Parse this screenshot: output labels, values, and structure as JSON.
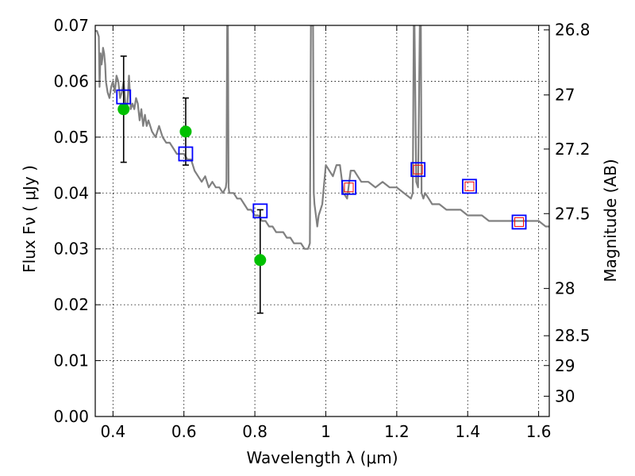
{
  "chart_data": {
    "type": "scatter",
    "xlabel": "Wavelength  λ (μm)",
    "ylabel": "Flux  Fν  ( μJy )",
    "y2label": "Magnitude (AB)",
    "xlim": [
      0.35,
      1.63
    ],
    "ylim": [
      0.0,
      0.07
    ],
    "grid": true,
    "x_ticks": [
      0.4,
      0.6,
      0.8,
      1.0,
      1.2,
      1.4,
      1.6
    ],
    "x_tick_labels": [
      "0.4",
      "0.6",
      "0.8",
      "1",
      "1.2",
      "1.4",
      "1.6"
    ],
    "y_ticks": [
      0.0,
      0.01,
      0.02,
      0.03,
      0.04,
      0.05,
      0.06,
      0.07
    ],
    "y_tick_labels": [
      "0.00",
      "0.01",
      "0.02",
      "0.03",
      "0.04",
      "0.05",
      "0.06",
      "0.07"
    ],
    "y2_ticks": [
      26.8,
      27.0,
      27.2,
      27.5,
      28.0,
      28.5,
      29.0,
      30.0
    ],
    "y2_tick_labels": [
      "26.8",
      "27",
      "27.2",
      "27.5",
      "28",
      "28.5",
      "29",
      "30"
    ],
    "series": [
      {
        "kind": "model-spectrum",
        "color": "#808080",
        "x": [
          0.35,
          0.355,
          0.36,
          0.362,
          0.365,
          0.368,
          0.37,
          0.372,
          0.375,
          0.378,
          0.38,
          0.385,
          0.39,
          0.395,
          0.4,
          0.405,
          0.41,
          0.415,
          0.42,
          0.425,
          0.43,
          0.435,
          0.44,
          0.445,
          0.45,
          0.455,
          0.46,
          0.465,
          0.47,
          0.475,
          0.48,
          0.485,
          0.49,
          0.495,
          0.5,
          0.51,
          0.52,
          0.53,
          0.54,
          0.55,
          0.56,
          0.57,
          0.58,
          0.59,
          0.6,
          0.61,
          0.62,
          0.63,
          0.64,
          0.65,
          0.66,
          0.67,
          0.68,
          0.69,
          0.7,
          0.71,
          0.718,
          0.72,
          0.722,
          0.724,
          0.726,
          0.728,
          0.73,
          0.74,
          0.75,
          0.76,
          0.77,
          0.78,
          0.79,
          0.8,
          0.81,
          0.82,
          0.83,
          0.84,
          0.85,
          0.86,
          0.87,
          0.88,
          0.89,
          0.9,
          0.91,
          0.92,
          0.93,
          0.94,
          0.95,
          0.955,
          0.958,
          0.96,
          0.962,
          0.964,
          0.966,
          0.968,
          0.97,
          0.972,
          0.974,
          0.976,
          0.978,
          0.98,
          0.985,
          0.99,
          1.0,
          1.01,
          1.02,
          1.03,
          1.04,
          1.05,
          1.06,
          1.07,
          1.08,
          1.09,
          1.1,
          1.12,
          1.14,
          1.16,
          1.18,
          1.2,
          1.22,
          1.24,
          1.245,
          1.248,
          1.25,
          1.255,
          1.26,
          1.265,
          1.268,
          1.27,
          1.275,
          1.28,
          1.29,
          1.3,
          1.32,
          1.34,
          1.36,
          1.38,
          1.4,
          1.42,
          1.44,
          1.46,
          1.48,
          1.5,
          1.52,
          1.54,
          1.56,
          1.58,
          1.6,
          1.62,
          1.63
        ],
        "y": [
          0.069,
          0.069,
          0.068,
          0.059,
          0.065,
          0.063,
          0.064,
          0.066,
          0.065,
          0.063,
          0.06,
          0.058,
          0.057,
          0.059,
          0.06,
          0.058,
          0.061,
          0.06,
          0.057,
          0.058,
          0.06,
          0.056,
          0.055,
          0.061,
          0.055,
          0.056,
          0.055,
          0.057,
          0.056,
          0.053,
          0.055,
          0.052,
          0.054,
          0.052,
          0.053,
          0.051,
          0.05,
          0.052,
          0.05,
          0.049,
          0.049,
          0.048,
          0.047,
          0.047,
          0.047,
          0.046,
          0.046,
          0.044,
          0.043,
          0.042,
          0.043,
          0.041,
          0.042,
          0.041,
          0.041,
          0.04,
          0.041,
          0.042,
          0.07,
          0.07,
          0.041,
          0.04,
          0.04,
          0.04,
          0.039,
          0.039,
          0.038,
          0.037,
          0.037,
          0.036,
          0.036,
          0.035,
          0.035,
          0.034,
          0.034,
          0.033,
          0.033,
          0.033,
          0.032,
          0.032,
          0.031,
          0.031,
          0.031,
          0.03,
          0.03,
          0.031,
          0.07,
          0.07,
          0.07,
          0.07,
          0.04,
          0.038,
          0.037,
          0.036,
          0.035,
          0.034,
          0.035,
          0.036,
          0.037,
          0.038,
          0.045,
          0.044,
          0.043,
          0.045,
          0.045,
          0.04,
          0.039,
          0.044,
          0.044,
          0.043,
          0.042,
          0.042,
          0.041,
          0.042,
          0.041,
          0.041,
          0.04,
          0.039,
          0.04,
          0.07,
          0.07,
          0.042,
          0.041,
          0.07,
          0.07,
          0.04,
          0.039,
          0.04,
          0.039,
          0.038,
          0.038,
          0.037,
          0.037,
          0.037,
          0.036,
          0.036,
          0.036,
          0.035,
          0.035,
          0.035,
          0.035,
          0.035,
          0.035,
          0.035,
          0.035,
          0.034,
          0.034
        ],
        "note": ""
      },
      {
        "kind": "measurement",
        "marker": "filled-circle",
        "color": "#00c000",
        "x": [
          0.43,
          0.605,
          0.815
        ],
        "y": [
          0.055,
          0.051,
          0.028
        ],
        "yerr_low": [
          0.0455,
          0.045,
          0.0185
        ],
        "yerr_high": [
          0.0645,
          0.057,
          0.037
        ]
      },
      {
        "kind": "model-photometry",
        "marker": "open-square",
        "color": "#0000ff",
        "x": [
          0.43,
          0.605,
          0.815,
          1.065,
          1.26,
          1.405,
          1.545
        ],
        "y": [
          0.0572,
          0.047,
          0.0368,
          0.041,
          0.0442,
          0.0412,
          0.0348
        ]
      },
      {
        "kind": "model-photometry-small",
        "marker": "open-square",
        "color": "#ff0000",
        "x": [
          1.065,
          1.26,
          1.405,
          1.545
        ],
        "y": [
          0.041,
          0.0442,
          0.0412,
          0.0348
        ]
      }
    ]
  }
}
